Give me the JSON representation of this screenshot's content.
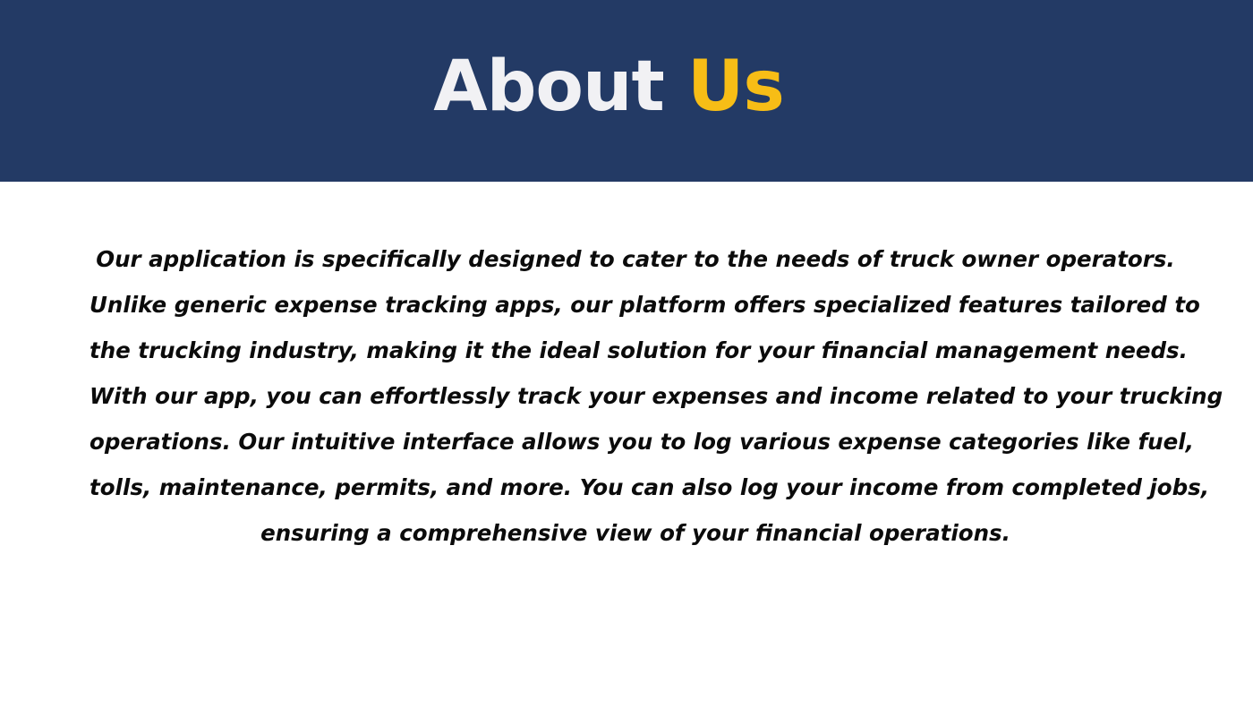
{
  "header": {
    "title_main": "About",
    "title_accent": "Us",
    "background_color": "#233a65",
    "title_color": "#f1f1f4",
    "accent_color": "#f7bd16"
  },
  "body": {
    "lines": [
      "Our application is specifically designed to cater to the needs of truck owner operators.",
      "Unlike generic expense tracking apps, our platform offers specialized features tailored to",
      "the trucking industry, making it the ideal solution for your financial management needs.",
      "With our app, you can effortlessly track your expenses and income related to your trucking",
      "operations. Our intuitive interface allows you to log various expense categories like fuel,",
      "tolls, maintenance, permits, and more. You can also log your income from completed jobs,",
      "ensuring a comprehensive view of your financial operations."
    ]
  }
}
